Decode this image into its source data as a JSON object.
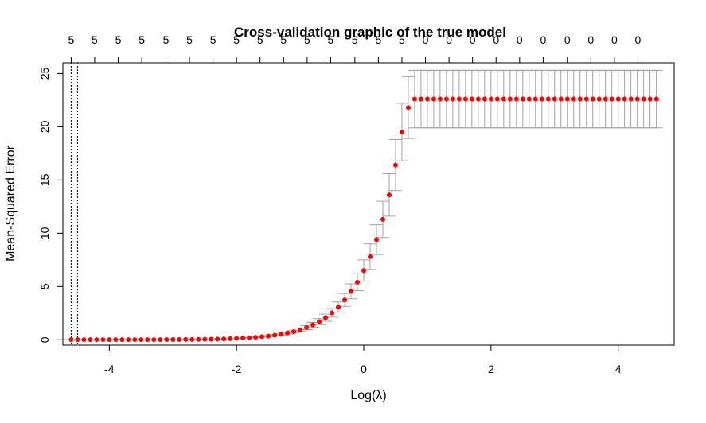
{
  "chart_data": {
    "type": "scatter",
    "title": "Cross-validation graphic of the true model",
    "xlabel": "Log(λ)",
    "ylabel": "Mean-Squared Error",
    "xlim": [
      -4.73,
      4.88
    ],
    "ylim": [
      -0.5,
      26.0
    ],
    "x_ticks": [
      -4,
      -2,
      0,
      2,
      4
    ],
    "y_ticks": [
      0,
      5,
      10,
      15,
      20,
      25
    ],
    "x_tick_labels": [
      "-4",
      "-2",
      "0",
      "2",
      "4"
    ],
    "y_tick_labels": [
      "0",
      "5",
      "10",
      "15",
      "20",
      "25"
    ],
    "top_axis": {
      "ticks": [
        -4.6,
        -4.23,
        -3.86,
        -3.49,
        -3.11,
        -2.74,
        -2.37,
        -2.0,
        -1.63,
        -1.26,
        -0.89,
        -0.52,
        -0.14,
        0.23,
        0.6,
        0.97,
        1.34,
        1.71,
        2.08,
        2.45,
        2.82,
        3.2,
        3.57,
        3.94,
        4.31
      ],
      "labels": [
        "5",
        "5",
        "5",
        "5",
        "5",
        "5",
        "5",
        "5",
        "5",
        "5",
        "5",
        "5",
        "5",
        "5",
        "5",
        "0",
        "0",
        "0",
        "0",
        "0",
        "0",
        "0",
        "0",
        "0",
        "0"
      ]
    },
    "vlines": [
      -4.6,
      -4.5
    ],
    "grid": false,
    "point_color": "#ff0000",
    "errorbar_color": "#a0a0a0",
    "series": [
      {
        "x": [
          -4.6,
          -4.5,
          -4.4,
          -4.3,
          -4.2,
          -4.1,
          -4.0,
          -3.9,
          -3.8,
          -3.7,
          -3.6,
          -3.5,
          -3.4,
          -3.3,
          -3.2,
          -3.1,
          -3.0,
          -2.9,
          -2.8,
          -2.7,
          -2.6,
          -2.5,
          -2.4,
          -2.3,
          -2.2,
          -2.1,
          -2.0,
          -1.9,
          -1.8,
          -1.7,
          -1.6,
          -1.5,
          -1.4,
          -1.3,
          -1.2,
          -1.1,
          -1.0,
          -0.9,
          -0.8,
          -0.7,
          -0.6,
          -0.5,
          -0.4,
          -0.3,
          -0.2,
          -0.1,
          0.0,
          0.1,
          0.2,
          0.3,
          0.4,
          0.5,
          0.6,
          0.7,
          0.8,
          0.9,
          1.0,
          1.1,
          1.2,
          1.3,
          1.4,
          1.5,
          1.6,
          1.7,
          1.8,
          1.9,
          2.0,
          2.1,
          2.2,
          2.3,
          2.4,
          2.5,
          2.6,
          2.7,
          2.8,
          2.9,
          3.0,
          3.1,
          3.2,
          3.3,
          3.4,
          3.5,
          3.6,
          3.7,
          3.8,
          3.9,
          4.0,
          4.1,
          4.2,
          4.3,
          4.4,
          4.5,
          4.6
        ],
        "y": [
          0.01,
          0.01,
          0.01,
          0.01,
          0.01,
          0.01,
          0.01,
          0.01,
          0.01,
          0.01,
          0.01,
          0.01,
          0.01,
          0.01,
          0.01,
          0.02,
          0.02,
          0.02,
          0.03,
          0.03,
          0.04,
          0.05,
          0.06,
          0.07,
          0.09,
          0.11,
          0.13,
          0.16,
          0.2,
          0.24,
          0.29,
          0.35,
          0.43,
          0.52,
          0.64,
          0.77,
          0.94,
          1.15,
          1.4,
          1.7,
          2.07,
          2.52,
          3.07,
          3.74,
          4.55,
          5.4,
          6.5,
          7.8,
          9.4,
          11.3,
          13.6,
          16.4,
          19.5,
          21.8,
          22.6,
          22.6,
          22.6,
          22.6,
          22.6,
          22.6,
          22.6,
          22.6,
          22.6,
          22.6,
          22.6,
          22.6,
          22.6,
          22.6,
          22.6,
          22.6,
          22.6,
          22.6,
          22.6,
          22.6,
          22.6,
          22.6,
          22.6,
          22.6,
          22.6,
          22.6,
          22.6,
          22.6,
          22.6,
          22.6,
          22.6,
          22.6,
          22.6,
          22.6,
          22.6,
          22.6,
          22.6,
          22.6,
          22.6
        ],
        "err": [
          0.002,
          0.002,
          0.002,
          0.002,
          0.002,
          0.002,
          0.002,
          0.002,
          0.002,
          0.002,
          0.002,
          0.002,
          0.002,
          0.002,
          0.002,
          0.003,
          0.003,
          0.003,
          0.004,
          0.005,
          0.006,
          0.007,
          0.009,
          0.01,
          0.013,
          0.016,
          0.02,
          0.025,
          0.03,
          0.037,
          0.045,
          0.055,
          0.068,
          0.082,
          0.1,
          0.12,
          0.15,
          0.19,
          0.23,
          0.28,
          0.33,
          0.4,
          0.48,
          0.6,
          0.7,
          0.8,
          1.0,
          1.2,
          1.4,
          1.7,
          2.0,
          2.4,
          2.7,
          2.9,
          2.7,
          2.7,
          2.7,
          2.7,
          2.7,
          2.7,
          2.7,
          2.7,
          2.7,
          2.7,
          2.7,
          2.7,
          2.7,
          2.7,
          2.7,
          2.7,
          2.7,
          2.7,
          2.7,
          2.7,
          2.7,
          2.7,
          2.7,
          2.7,
          2.7,
          2.7,
          2.7,
          2.7,
          2.7,
          2.7,
          2.7,
          2.7,
          2.7,
          2.7,
          2.7,
          2.7,
          2.7,
          2.7,
          2.7
        ]
      }
    ]
  }
}
